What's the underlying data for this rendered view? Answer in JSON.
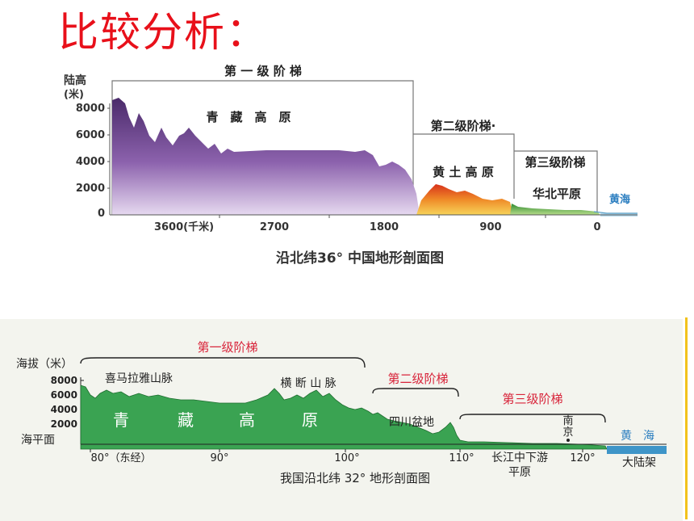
{
  "slide": {
    "title": "比较分析：",
    "accent_color": "#e8101a"
  },
  "diagram1": {
    "caption": "沿北纬36° 中国地形剖面图",
    "ylabel_line1": "陆高",
    "ylabel_line2": "(米)",
    "y_ticks": [
      "8000",
      "6000",
      "4000",
      "2000",
      "0"
    ],
    "x_ticks": [
      "3600(千米)",
      "2700",
      "1800",
      "900",
      "0"
    ],
    "step1": {
      "label": "第 一 级 阶 梯",
      "region": "青　藏　高　原"
    },
    "step2": {
      "label": "第二级阶梯·",
      "region": "黄 土 高 原"
    },
    "step3": {
      "label": "第三级阶梯",
      "region": "华北平原"
    },
    "sea": "黄海",
    "colors": {
      "plateau": "#7a4f98",
      "loess": "#e2571e",
      "plain": "#3f9a3a",
      "sea": "#8fc6e2"
    }
  },
  "diagram2": {
    "caption": "我国沿北纬 32° 地形剖面图",
    "ylabel": "海拔（米）",
    "sea_level": "海平面",
    "y_ticks": [
      "8000",
      "6000",
      "4000",
      "2000"
    ],
    "x_ticks": [
      "80°（东经）",
      "90°",
      "100°",
      "110°",
      "120°"
    ],
    "step1": "第一级阶梯",
    "step2": "第二级阶梯",
    "step3": "第三级阶梯",
    "features": {
      "himalaya": "喜马拉雅山脉",
      "hengduan": "横 断 山 脉",
      "qz1": "青",
      "qz2": "藏",
      "qz3": "高",
      "qz4": "原",
      "sichuan": "四川盆地",
      "nanjing1": "南",
      "nanjing2": "京",
      "yangtze1": "长江中下游",
      "yangtze2": "平原",
      "sea": "黄　海",
      "shelf": "大陆架"
    },
    "colors": {
      "terrain": "#3aa352",
      "sea": "#3e95c8",
      "label_red": "#d8243a",
      "bg": "#f3f4ee"
    }
  }
}
